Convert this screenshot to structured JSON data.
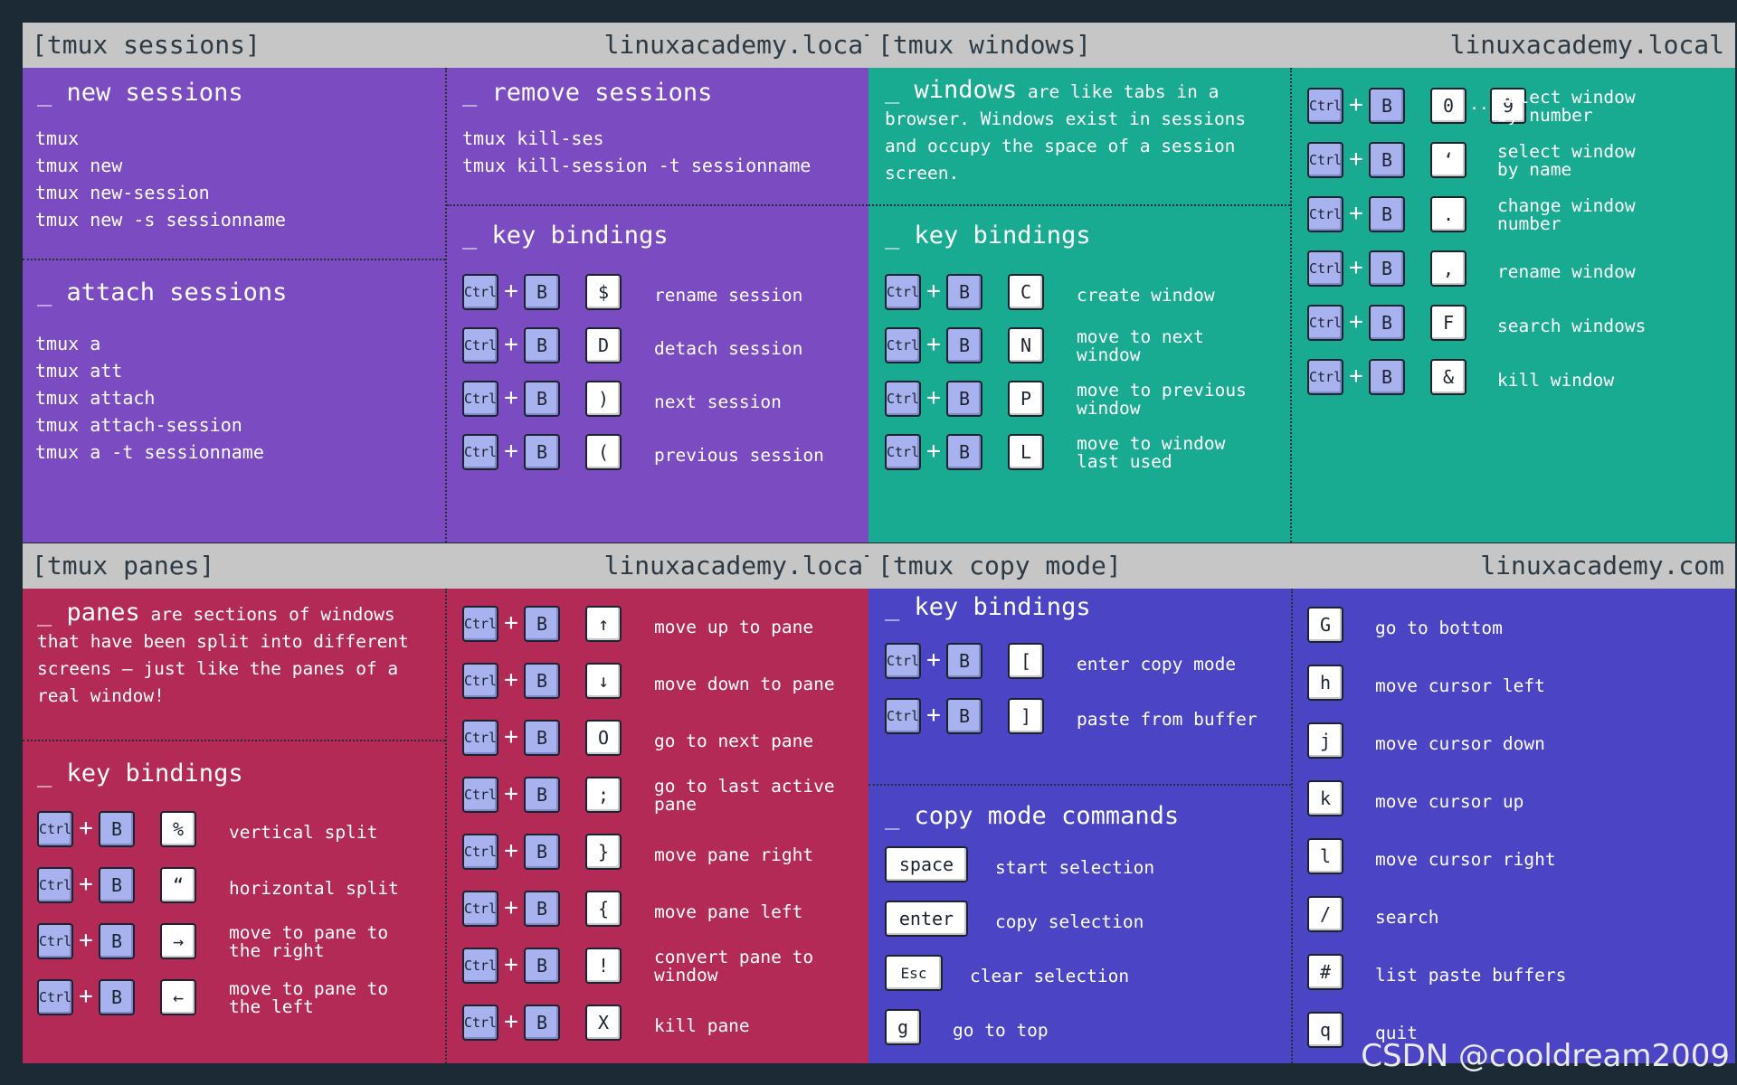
{
  "sessions": {
    "title": "[tmux sessions]",
    "host": "linuxacademy.local",
    "new": {
      "heading": "_ new sessions",
      "lines": "tmux\ntmux new\ntmux new-session\ntmux new -s sessionname"
    },
    "attach": {
      "heading": "_ attach sessions",
      "lines": "tmux a\ntmux att\ntmux attach\ntmux attach-session\ntmux a -t sessionname"
    },
    "remove": {
      "heading": "_ remove sessions",
      "lines": "tmux kill-ses\ntmux kill-session -t sessionname"
    },
    "keys": {
      "heading": "_ key bindings",
      "items": [
        {
          "key": "$",
          "label": "rename session"
        },
        {
          "key": "D",
          "label": "detach session"
        },
        {
          "key": ")",
          "label": "next session"
        },
        {
          "key": "(",
          "label": "previous session"
        }
      ]
    }
  },
  "windows": {
    "title": "[tmux windows]",
    "host": "linuxacademy.local",
    "intro": {
      "word": "_ windows",
      "text": " are like tabs in a browser. Windows exist in sessions and occupy the space of a session screen."
    },
    "keys": {
      "heading": "_ key bindings",
      "items": [
        {
          "key": "C",
          "label": "create window"
        },
        {
          "key": "N",
          "label": "move to next\nwindow"
        },
        {
          "key": "P",
          "label": "move to previous\nwindow"
        },
        {
          "key": "L",
          "label": "move to window\nlast used"
        }
      ]
    },
    "right_items": [
      {
        "key": "0",
        "key2": "9",
        "dots": "..",
        "label": "select window\nby number"
      },
      {
        "key": "‘",
        "label": "select window\nby name"
      },
      {
        "key": ".",
        "label": "change window\nnumber"
      },
      {
        "key": ",",
        "label": "rename window"
      },
      {
        "key": "F",
        "label": "search windows"
      },
      {
        "key": "&",
        "label": "kill window"
      }
    ]
  },
  "panes": {
    "title": "[tmux panes]",
    "host": "linuxacademy.local",
    "intro": {
      "word": "_ panes",
      "text": " are sections of windows that have been split into different screens – just like the panes of a real window!"
    },
    "keys": {
      "heading": "_ key bindings",
      "items": [
        {
          "key": "%",
          "label": "vertical split"
        },
        {
          "key": "“",
          "label": "horizontal split"
        },
        {
          "key": "→",
          "label": "move to pane to\nthe right"
        },
        {
          "key": "←",
          "label": "move to pane to\nthe left"
        }
      ]
    },
    "right_items": [
      {
        "key": "↑",
        "label": "move up to pane"
      },
      {
        "key": "↓",
        "label": "move down to pane"
      },
      {
        "key": "O",
        "label": "go to next pane"
      },
      {
        "key": ";",
        "label": "go to last active\npane"
      },
      {
        "key": "}",
        "label": "move pane right"
      },
      {
        "key": "{",
        "label": "move pane left"
      },
      {
        "key": "!",
        "label": "convert pane to\nwindow"
      },
      {
        "key": "X",
        "label": "kill pane"
      }
    ]
  },
  "copy": {
    "title": "[tmux copy mode]",
    "host": "linuxacademy.com",
    "keys": {
      "heading": "_ key bindings",
      "items": [
        {
          "key": "[",
          "label": "enter copy mode"
        },
        {
          "key": "]",
          "label": "paste from buffer"
        }
      ]
    },
    "commands": {
      "heading": "_ copy mode commands",
      "items": [
        {
          "key": "space",
          "label": "start selection"
        },
        {
          "key": "enter",
          "label": "copy selection"
        },
        {
          "key": "Esc",
          "label": "clear selection"
        },
        {
          "key": "g",
          "label": "go to top"
        }
      ]
    },
    "right_items": [
      {
        "key": "G",
        "label": "go to bottom"
      },
      {
        "key": "h",
        "label": "move cursor left"
      },
      {
        "key": "j",
        "label": "move cursor down"
      },
      {
        "key": "k",
        "label": "move cursor up"
      },
      {
        "key": "l",
        "label": "move cursor right"
      },
      {
        "key": "/",
        "label": "search"
      },
      {
        "key": "#",
        "label": "list paste buffers"
      },
      {
        "key": "q",
        "label": "quit"
      }
    ]
  },
  "common": {
    "ctrl": "Ctrl",
    "b": "B",
    "plus": "+"
  },
  "watermark": "CSDN @cooldream2009"
}
